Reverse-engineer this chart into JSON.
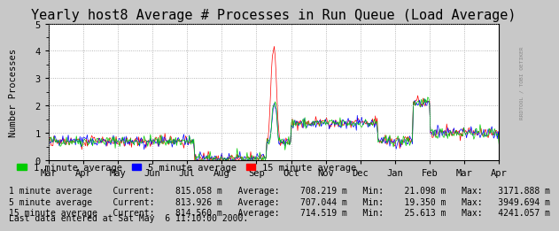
{
  "title": "Yearly host8 Average # Processes in Run Queue (Load Average)",
  "ylabel": "Number Processes",
  "ylim": [
    0.0,
    5.0
  ],
  "yticks": [
    0.0,
    1.0,
    2.0,
    3.0,
    4.0,
    5.0
  ],
  "xticklabels": [
    "Mar",
    "Apr",
    "May",
    "Jun",
    "Jul",
    "Aug",
    "Sep",
    "Oct",
    "Nov",
    "Dec",
    "Jan",
    "Feb",
    "Mar",
    "Apr"
  ],
  "bg_color": "#c8c8c8",
  "plot_bg_color": "#ffffff",
  "grid_color": "#999999",
  "line1_color": "#00cc00",
  "line2_color": "#0000ff",
  "line3_color": "#ff0000",
  "legend_labels": [
    "1 minute average",
    "5 minute average",
    "15 minute average"
  ],
  "stats_line1": "1 minute average    Current:    815.058 m   Average:    708.219 m   Min:    21.098 m   Max:   3171.888 m",
  "stats_line2": "5 minute average    Current:    813.926 m   Average:    707.044 m   Min:    19.350 m   Max:   3949.694 m",
  "stats_line3": "15 minute average   Current:    814.560 m   Average:    714.519 m   Min:    25.613 m   Max:   4241.057 m",
  "last_data_line": "Last data entered at Sat May  6 11:10:00 2000.",
  "watermark": "RRDTOOL / TOBI OETIKER",
  "title_fontsize": 11,
  "axis_fontsize": 7.5,
  "stats_fontsize": 7.5,
  "n_points": 500
}
